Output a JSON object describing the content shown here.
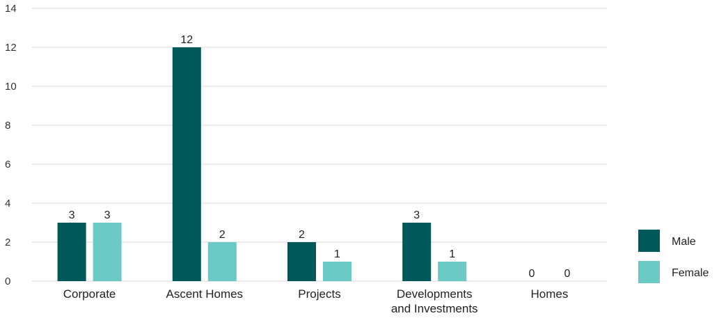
{
  "chart_data": {
    "type": "bar",
    "categories": [
      "Corporate",
      "Ascent Homes",
      "Projects",
      "Developments and Investments",
      "Homes"
    ],
    "category_label_lines": [
      [
        "Corporate"
      ],
      [
        "Ascent Homes"
      ],
      [
        "Projects"
      ],
      [
        "Developments",
        "and Investments"
      ],
      [
        "Homes"
      ]
    ],
    "series": [
      {
        "name": "Male",
        "values": [
          3,
          12,
          2,
          3,
          0
        ],
        "color": "#00585a"
      },
      {
        "name": "Female",
        "values": [
          3,
          2,
          1,
          1,
          0
        ],
        "color": "#6ccac6"
      }
    ],
    "ylim": [
      0,
      14
    ],
    "yticks": [
      0,
      2,
      4,
      6,
      8,
      10,
      12,
      14
    ],
    "grid": true,
    "legend_position": "right",
    "xlabel": "",
    "ylabel": "",
    "title": ""
  }
}
